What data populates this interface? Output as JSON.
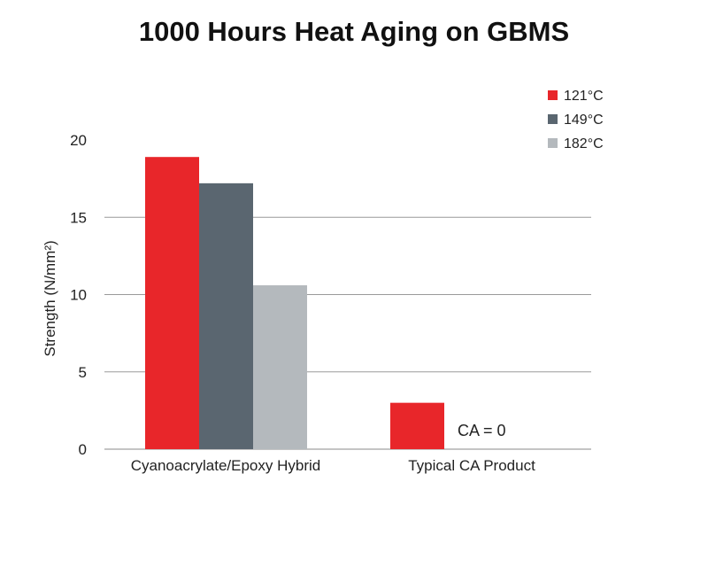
{
  "chart_data": {
    "type": "bar",
    "title": "1000 Hours Heat Aging on GBMS",
    "ylabel": "Strength (N/mm²)",
    "xlabel": "",
    "categories": [
      "Cyanoacrylate/Epoxy Hybrid",
      "Typical CA Product"
    ],
    "series": [
      {
        "name": "121°C",
        "color": "#e8262a",
        "values": [
          18.9,
          3.0
        ]
      },
      {
        "name": "149°C",
        "color": "#5a6670",
        "values": [
          17.2,
          0
        ]
      },
      {
        "name": "182°C",
        "color": "#b4b9bd",
        "values": [
          10.6,
          0
        ]
      }
    ],
    "ylim": [
      0,
      20
    ],
    "yticks": [
      0,
      5,
      10,
      15,
      20
    ],
    "grid": true,
    "legend_position": "top-right",
    "annotations": [
      {
        "text": "CA = 0",
        "category": "Typical CA Product"
      }
    ]
  }
}
